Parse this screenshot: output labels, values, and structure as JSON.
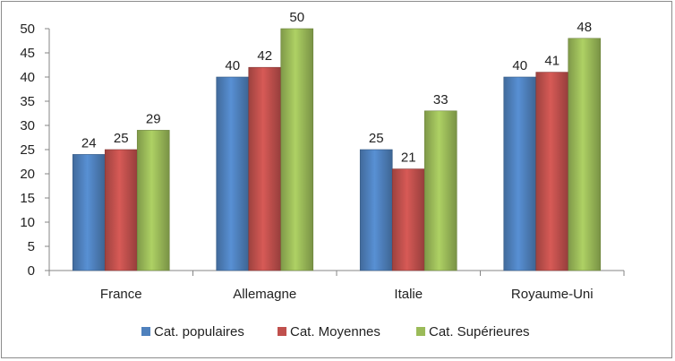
{
  "chart_data": {
    "type": "bar",
    "categories": [
      "France",
      "Allemagne",
      "Italie",
      "Royaume-Uni"
    ],
    "series": [
      {
        "name": "Cat. populaires",
        "values": [
          24,
          40,
          25,
          40
        ],
        "color": "#4f81bd"
      },
      {
        "name": "Cat. Moyennes",
        "values": [
          25,
          42,
          21,
          41
        ],
        "color": "#c0504d"
      },
      {
        "name": "Cat. Supérieures",
        "values": [
          29,
          50,
          33,
          48
        ],
        "color": "#9bbb59"
      }
    ],
    "title": "",
    "xlabel": "",
    "ylabel": "",
    "ylim": [
      0,
      50
    ],
    "yticks": [
      0,
      5,
      10,
      15,
      20,
      25,
      30,
      35,
      40,
      45,
      50
    ],
    "grid": false,
    "legend_position": "bottom",
    "data_labels": true
  }
}
